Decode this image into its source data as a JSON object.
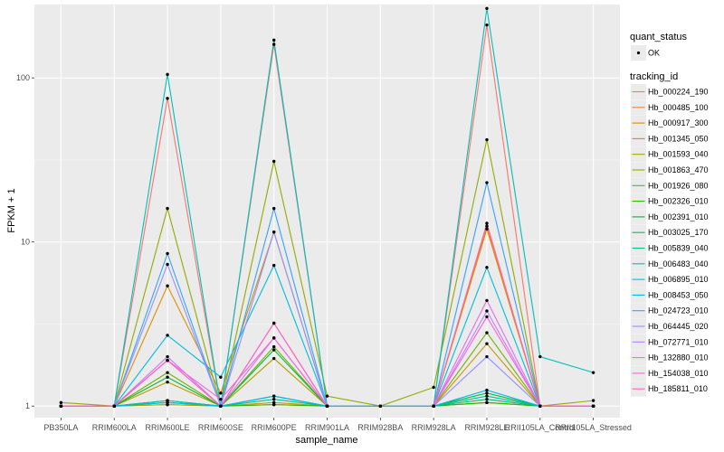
{
  "chart_data": {
    "type": "line",
    "xlabel": "sample_name",
    "ylabel": "FPKM + 1",
    "y_scale": "log10",
    "ylim": [
      0.85,
      280
    ],
    "y_ticks": [
      1,
      10,
      100
    ],
    "y_tick_labels": [
      "1",
      "10",
      "100"
    ],
    "categories": [
      "PB350LA",
      "RRIM600LA",
      "RRIM600LE",
      "RRIM600SE",
      "RRIM600PE",
      "RRIM901LA",
      "RRIM928BA",
      "RRIM928LA",
      "RRIM928LE",
      "RRII105LA_Control",
      "RRII105LA_Stressed"
    ],
    "background": "#ebebeb",
    "grid": true,
    "point_legend": {
      "title": "quant_status",
      "items": [
        "OK"
      ]
    },
    "legend_title": "tracking_id",
    "legend_position": "right",
    "series": [
      {
        "name": "Hb_000224_190",
        "color": "#F8766D",
        "values": [
          1.0,
          1.0,
          75,
          1.0,
          160,
          1.0,
          null,
          1.0,
          210,
          1.0,
          1.0
        ]
      },
      {
        "name": "Hb_000485_100",
        "color": "#EC8239",
        "values": [
          1.0,
          1.0,
          1.02,
          1.0,
          1.02,
          1.0,
          null,
          1.0,
          12.5,
          1.0,
          1.0
        ]
      },
      {
        "name": "Hb_000917_300",
        "color": "#DB8E00",
        "values": [
          1.0,
          1.0,
          5.4,
          1.2,
          11.5,
          1.0,
          null,
          1.0,
          12.0,
          1.0,
          1.0
        ]
      },
      {
        "name": "Hb_001345_050",
        "color": "#C79800",
        "values": [
          1.0,
          1.0,
          1.4,
          1.0,
          1.05,
          1.0,
          1.0,
          1.0,
          2.4,
          1.0,
          1.0
        ]
      },
      {
        "name": "Hb_001593_040",
        "color": "#AFA100",
        "values": [
          1.0,
          1.0,
          1.02,
          1.0,
          1.95,
          1.0,
          1.0,
          1.0,
          1.05,
          1.0,
          1.0
        ]
      },
      {
        "name": "Hb_001863_470",
        "color": "#93AA00",
        "values": [
          1.05,
          1.0,
          16,
          1.0,
          31,
          1.15,
          1.0,
          1.3,
          42,
          1.0,
          1.08
        ]
      },
      {
        "name": "Hb_001926_080",
        "color": "#6EB200",
        "values": [
          1.0,
          1.0,
          1.6,
          1.0,
          2.3,
          1.0,
          null,
          1.0,
          2.8,
          1.0,
          1.0
        ]
      },
      {
        "name": "Hb_002326_010",
        "color": "#2BB600",
        "values": [
          1.0,
          1.0,
          1.05,
          1.0,
          1.02,
          1.0,
          null,
          1.0,
          1.05,
          1.0,
          1.0
        ]
      },
      {
        "name": "Hb_002391_010",
        "color": "#00BA38",
        "values": [
          1.0,
          1.0,
          1.5,
          1.0,
          2.2,
          1.0,
          null,
          1.0,
          1.2,
          1.0,
          1.0
        ]
      },
      {
        "name": "Hb_003025_170",
        "color": "#00BE6C",
        "values": [
          1.0,
          1.0,
          1.08,
          1.0,
          1.15,
          1.0,
          null,
          1.0,
          1.1,
          1.0,
          1.0
        ]
      },
      {
        "name": "Hb_005839_040",
        "color": "#00BF96",
        "values": [
          1.0,
          1.0,
          1.08,
          1.0,
          1.1,
          1.0,
          null,
          1.0,
          1.15,
          1.0,
          1.0
        ]
      },
      {
        "name": "Hb_006483_040",
        "color": "#00BFBC",
        "values": [
          1.0,
          1.0,
          105,
          1.0,
          170,
          1.0,
          null,
          1.0,
          265,
          2.0,
          1.6
        ]
      },
      {
        "name": "Hb_006895_010",
        "color": "#00BDDC",
        "values": [
          1.0,
          1.0,
          2.7,
          1.5,
          7.2,
          1.0,
          null,
          1.0,
          7.0,
          1.0,
          1.0
        ]
      },
      {
        "name": "Hb_008453_050",
        "color": "#00B8E7",
        "values": [
          1.0,
          1.0,
          1.05,
          1.0,
          1.15,
          1.0,
          null,
          1.0,
          1.25,
          1.0,
          1.0
        ]
      },
      {
        "name": "Hb_024723_010",
        "color": "#35A2FF",
        "values": [
          1.0,
          1.0,
          8.5,
          1.0,
          16,
          1.0,
          1.0,
          1.0,
          23,
          1.0,
          1.0
        ]
      },
      {
        "name": "Hb_064445_020",
        "color": "#9590FF",
        "values": [
          1.0,
          1.0,
          7.3,
          1.0,
          11.5,
          1.0,
          null,
          1.0,
          2.0,
          1.0,
          1.0
        ]
      },
      {
        "name": "Hb_072771_010",
        "color": "#C77CFF",
        "values": [
          1.0,
          1.0,
          2.0,
          1.0,
          2.6,
          1.0,
          null,
          1.0,
          3.8,
          1.0,
          1.0
        ]
      },
      {
        "name": "Hb_132880_010",
        "color": "#E76BF3",
        "values": [
          1.0,
          1.0,
          1.9,
          1.0,
          3.2,
          1.0,
          null,
          1.0,
          4.4,
          1.0,
          1.0
        ]
      },
      {
        "name": "Hb_154038_010",
        "color": "#FA62DB",
        "values": [
          1.0,
          1.0,
          1.9,
          1.1,
          2.6,
          1.0,
          null,
          1.0,
          3.5,
          1.0,
          1.0
        ]
      },
      {
        "name": "Hb_185811_010",
        "color": "#FF62BC",
        "values": [
          1.0,
          1.0,
          1.9,
          1.0,
          3.2,
          1.0,
          null,
          1.0,
          13,
          1.0,
          1.0
        ]
      }
    ]
  }
}
